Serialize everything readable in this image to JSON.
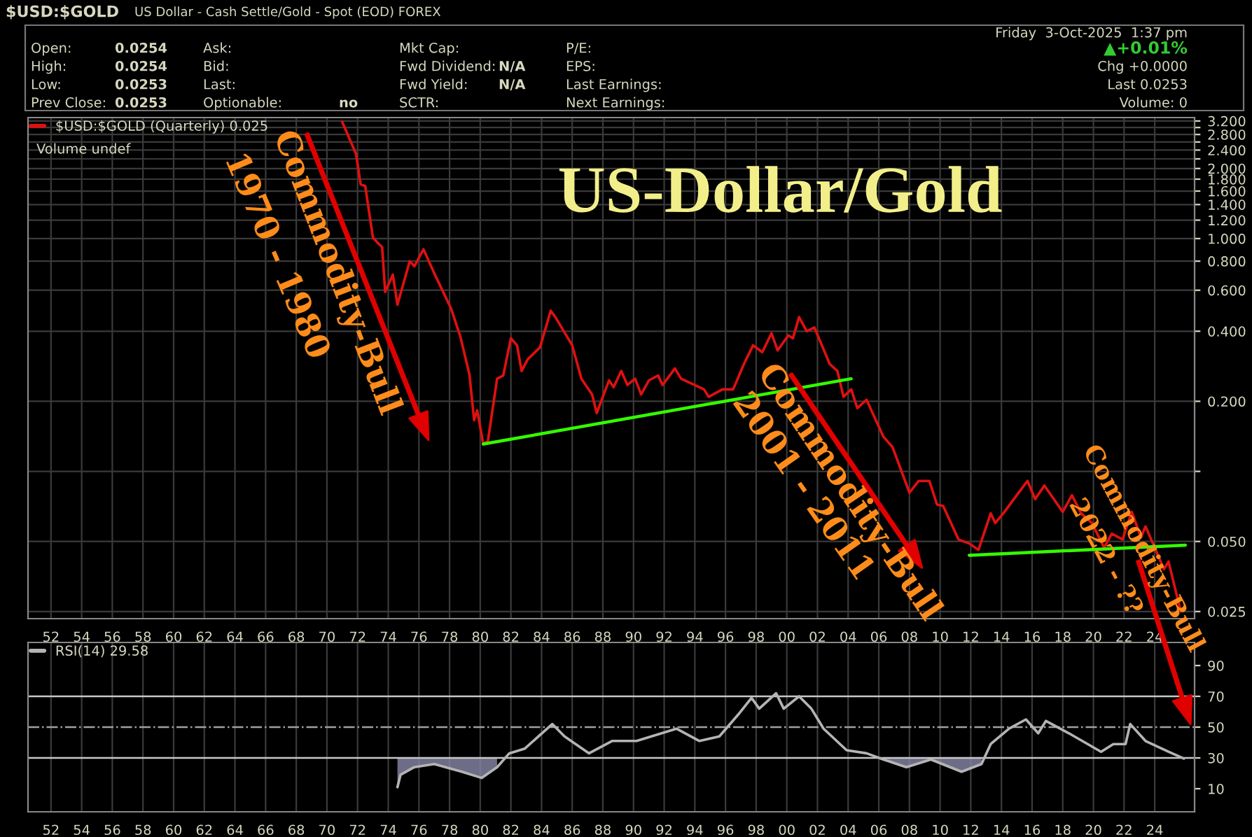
{
  "chart_data": [
    {
      "type": "other",
      "title": "$USD:$GOLD",
      "subtitle": "US Dollar - Cash Settle/Gold - Spot (EOD) FOREX",
      "annotations": [
        "Open:",
        "0.0254",
        "High:",
        "0.0254",
        "Low:",
        "0.0253",
        "Prev Close:",
        "0.0253",
        "Ask:",
        "Bid:",
        "Last:",
        "Optionable:",
        "no",
        "Mkt Cap:",
        "Fwd Dividend:",
        "N/A",
        "Fwd Yield:",
        "N/A",
        "SCTR:",
        "P/E:",
        "EPS:",
        "Last Earnings:",
        "Next Earnings:",
        "Friday  3-Oct-2025  1:37 pm",
        "▲+0.01%",
        "Chg +0.0000",
        "Last 0.0253",
        "Volume: 0"
      ]
    },
    {
      "type": "line",
      "title": "US-Dollar/Gold",
      "log": "y",
      "grid": true,
      "legend": "top left",
      "xlim": [
        1950.5,
        2026.6
      ],
      "ylim": [
        0.0233,
        3.31
      ],
      "xticks": [
        {
          "value": 1952,
          "label": "52"
        },
        {
          "value": 1954,
          "label": "54"
        },
        {
          "value": 1956,
          "label": "56"
        },
        {
          "value": 1958,
          "label": "58"
        },
        {
          "value": 1960,
          "label": "60"
        },
        {
          "value": 1962,
          "label": "62"
        },
        {
          "value": 1964,
          "label": "64"
        },
        {
          "value": 1966,
          "label": "66"
        },
        {
          "value": 1968,
          "label": "68"
        },
        {
          "value": 1970,
          "label": "70"
        },
        {
          "value": 1972,
          "label": "72"
        },
        {
          "value": 1974,
          "label": "74"
        },
        {
          "value": 1976,
          "label": "76"
        },
        {
          "value": 1978,
          "label": "78"
        },
        {
          "value": 1980,
          "label": "80"
        },
        {
          "value": 1982,
          "label": "82"
        },
        {
          "value": 1984,
          "label": "84"
        },
        {
          "value": 1986,
          "label": "86"
        },
        {
          "value": 1988,
          "label": "88"
        },
        {
          "value": 1990,
          "label": "90"
        },
        {
          "value": 1992,
          "label": "92"
        },
        {
          "value": 1994,
          "label": "94"
        },
        {
          "value": 1996,
          "label": "96"
        },
        {
          "value": 1998,
          "label": "98"
        },
        {
          "value": 2000,
          "label": "00"
        },
        {
          "value": 2002,
          "label": "02"
        },
        {
          "value": 2004,
          "label": "04"
        },
        {
          "value": 2006,
          "label": "06"
        },
        {
          "value": 2008,
          "label": "08"
        },
        {
          "value": 2010,
          "label": "10"
        },
        {
          "value": 2012,
          "label": "12"
        },
        {
          "value": 2014,
          "label": "14"
        },
        {
          "value": 2016,
          "label": "16"
        },
        {
          "value": 2018,
          "label": "18"
        },
        {
          "value": 2020,
          "label": "20"
        },
        {
          "value": 2022,
          "label": "22"
        },
        {
          "value": 2024,
          "label": "24"
        }
      ],
      "yticks": [
        {
          "value": 0.025,
          "label": "0.025"
        },
        {
          "value": 0.05,
          "label": "0.050"
        },
        {
          "value": 0.1,
          "label": null
        },
        {
          "value": 0.2,
          "label": "0.200"
        },
        {
          "value": 0.4,
          "label": "0.400"
        },
        {
          "value": 0.6,
          "label": "0.600"
        },
        {
          "value": 0.8,
          "label": "0.800"
        },
        {
          "value": 1.0,
          "label": "1.000"
        },
        {
          "value": 1.2,
          "label": "1.200"
        },
        {
          "value": 1.4,
          "label": "1.400"
        },
        {
          "value": 1.6,
          "label": "1.600"
        },
        {
          "value": 1.8,
          "label": "1.800"
        },
        {
          "value": 2.0,
          "label": "2.000"
        },
        {
          "value": 2.2,
          "label": null
        },
        {
          "value": 2.4,
          "label": "2.400"
        },
        {
          "value": 2.6,
          "label": null
        },
        {
          "value": 2.8,
          "label": "2.800"
        },
        {
          "value": 3.0,
          "label": null
        },
        {
          "value": 3.2,
          "label": "3.200"
        }
      ],
      "annotations": [
        "Volume undef",
        "Commodity-Bull",
        "1970 - 1980",
        "Commodity-Bull",
        "2001 - 2011",
        "Commodity-Bull",
        "2022 - ??"
      ],
      "series": [
        {
          "name": "$USD:$GOLD (Quarterly) 0.025",
          "color": "#e01010",
          "x": [
            1971.0,
            1971.9,
            1972.2,
            1972.5,
            1973.0,
            1973.3,
            1973.6,
            1973.8,
            1974.3,
            1974.6,
            1975.4,
            1975.7,
            1976.3,
            1977.0,
            1978.1,
            1978.7,
            1979.3,
            1979.6,
            1979.8,
            1980.2,
            1980.5,
            1981.1,
            1981.5,
            1982.0,
            1982.4,
            1982.7,
            1983.1,
            1983.9,
            1984.6,
            1984.9,
            1986.0,
            1986.6,
            1987.3,
            1987.6,
            1988.4,
            1988.7,
            1989.2,
            1989.6,
            1990.1,
            1990.5,
            1991.0,
            1991.6,
            1991.9,
            1992.7,
            1993.1,
            1994.6,
            1994.9,
            1995.8,
            1996.5,
            1997.2,
            1997.8,
            1998.4,
            1999.0,
            1999.4,
            2000.1,
            2000.4,
            2000.8,
            2001.3,
            2001.8,
            2002.8,
            2003.3,
            2003.7,
            2004.2,
            2004.6,
            2005.2,
            2006.3,
            2006.9,
            2008.0,
            2008.6,
            2009.3,
            2009.8,
            2010.2,
            2011.2,
            2011.9,
            2012.5,
            2013.3,
            2013.6,
            2014.2,
            2015.0,
            2015.7,
            2016.2,
            2016.8,
            2018.0,
            2018.6,
            2019.2,
            2019.9,
            2020.7,
            2021.2,
            2021.9,
            2022.5,
            2023.1,
            2023.4,
            2024.0,
            2024.6,
            2024.9,
            2025.7
          ],
          "values": [
            3.17,
            2.31,
            1.71,
            1.68,
            1.01,
            0.96,
            0.92,
            0.59,
            0.7,
            0.52,
            0.8,
            0.76,
            0.9,
            0.71,
            0.5,
            0.38,
            0.26,
            0.166,
            0.183,
            0.131,
            0.135,
            0.25,
            0.258,
            0.373,
            0.348,
            0.27,
            0.303,
            0.341,
            0.49,
            0.46,
            0.348,
            0.25,
            0.214,
            0.178,
            0.246,
            0.23,
            0.27,
            0.235,
            0.25,
            0.214,
            0.246,
            0.258,
            0.235,
            0.277,
            0.25,
            0.225,
            0.209,
            0.225,
            0.225,
            0.289,
            0.348,
            0.325,
            0.392,
            0.331,
            0.384,
            0.373,
            0.46,
            0.4,
            0.415,
            0.289,
            0.27,
            0.209,
            0.225,
            0.187,
            0.203,
            0.141,
            0.127,
            0.081,
            0.091,
            0.091,
            0.072,
            0.071,
            0.051,
            0.049,
            0.046,
            0.066,
            0.06,
            0.067,
            0.079,
            0.091,
            0.076,
            0.087,
            0.067,
            0.079,
            0.066,
            0.06,
            0.047,
            0.054,
            0.051,
            0.067,
            0.052,
            0.058,
            0.047,
            0.038,
            0.041,
            0.025
          ]
        },
        {
          "color": "#33ff00",
          "x": [
            1980.2,
            2004.2
          ],
          "values": [
            0.131,
            0.25
          ]
        },
        {
          "color": "#33ff00",
          "x": [
            2011.9,
            2026.0
          ],
          "values": [
            0.0436,
            0.0482
          ]
        }
      ]
    },
    {
      "type": "line",
      "grid": "x",
      "legend": "top left",
      "xlim": [
        1950.5,
        2026.6
      ],
      "ylim": [
        -5,
        105
      ],
      "xticks": [
        {
          "value": 1952,
          "label": "52"
        },
        {
          "value": 1954,
          "label": "54"
        },
        {
          "value": 1956,
          "label": "56"
        },
        {
          "value": 1958,
          "label": "58"
        },
        {
          "value": 1960,
          "label": "60"
        },
        {
          "value": 1962,
          "label": "62"
        },
        {
          "value": 1964,
          "label": "64"
        },
        {
          "value": 1966,
          "label": "66"
        },
        {
          "value": 1968,
          "label": "68"
        },
        {
          "value": 1970,
          "label": "70"
        },
        {
          "value": 1972,
          "label": "72"
        },
        {
          "value": 1974,
          "label": "74"
        },
        {
          "value": 1976,
          "label": "76"
        },
        {
          "value": 1978,
          "label": "78"
        },
        {
          "value": 1980,
          "label": "80"
        },
        {
          "value": 1982,
          "label": "82"
        },
        {
          "value": 1984,
          "label": "84"
        },
        {
          "value": 1986,
          "label": "86"
        },
        {
          "value": 1988,
          "label": "88"
        },
        {
          "value": 1990,
          "label": "90"
        },
        {
          "value": 1992,
          "label": "92"
        },
        {
          "value": 1994,
          "label": "94"
        },
        {
          "value": 1996,
          "label": "96"
        },
        {
          "value": 1998,
          "label": "98"
        },
        {
          "value": 2000,
          "label": "00"
        },
        {
          "value": 2002,
          "label": "02"
        },
        {
          "value": 2004,
          "label": "04"
        },
        {
          "value": 2006,
          "label": "06"
        },
        {
          "value": 2008,
          "label": "08"
        },
        {
          "value": 2010,
          "label": "10"
        },
        {
          "value": 2012,
          "label": "12"
        },
        {
          "value": 2014,
          "label": "14"
        },
        {
          "value": 2016,
          "label": "16"
        },
        {
          "value": 2018,
          "label": "18"
        },
        {
          "value": 2020,
          "label": "20"
        },
        {
          "value": 2022,
          "label": "22"
        },
        {
          "value": 2024,
          "label": "24"
        }
      ],
      "yticks": [
        10,
        30,
        50,
        70,
        90
      ],
      "ref_lines": [
        {
          "axis": "y",
          "value": 70,
          "color": "#c8c8c8",
          "line_style": "solid"
        },
        {
          "axis": "y",
          "value": 50,
          "color": "#a0a0a0",
          "line_style": "dashdot"
        },
        {
          "axis": "y",
          "value": 30,
          "color": "#c8c8c8",
          "line_style": "solid"
        }
      ],
      "series": [
        {
          "name": "RSI(14) 29.58",
          "color": "#b4b4b4",
          "x": [
            1974.6,
            1974.8,
            1975.7,
            1977.0,
            1978.8,
            1980.1,
            1981.1,
            1981.9,
            1982.9,
            1984.7,
            1985.5,
            1987.1,
            1988.6,
            1990.2,
            1992.8,
            1994.3,
            1995.6,
            1996.9,
            1997.7,
            1998.2,
            1999.3,
            1999.8,
            2000.8,
            2001.6,
            2002.4,
            2003.9,
            2005.2,
            2006.3,
            2007.8,
            2009.4,
            2011.4,
            2012.7,
            2013.3,
            2014.5,
            2015.6,
            2016.4,
            2016.9,
            2018.4,
            2020.5,
            2021.3,
            2022.1,
            2022.4,
            2023.4,
            2024.9,
            2025.9
          ],
          "values": [
            11,
            19,
            24,
            26,
            21,
            17,
            24,
            33,
            36,
            52,
            44,
            33,
            41,
            41,
            49,
            41,
            44,
            59,
            69,
            62,
            72,
            62,
            70,
            62,
            49,
            35,
            33,
            29,
            24,
            29,
            21,
            26,
            39,
            49,
            55,
            46,
            54,
            46,
            34,
            39,
            39,
            52,
            41,
            34,
            29.58
          ],
          "lower": [
            11,
            19,
            24,
            26,
            21,
            17,
            24,
            null,
            null,
            null,
            null,
            null,
            null,
            null,
            null,
            null,
            null,
            null,
            null,
            null,
            null,
            null,
            null,
            null,
            null,
            null,
            null,
            29,
            24,
            29,
            21,
            26,
            null,
            null,
            null,
            null,
            null,
            null,
            null,
            null,
            null,
            null,
            null,
            null,
            null
          ],
          "upper": [
            30,
            30,
            30,
            30,
            30,
            30,
            30,
            null,
            null,
            null,
            null,
            null,
            null,
            null,
            null,
            null,
            null,
            null,
            null,
            null,
            null,
            null,
            null,
            null,
            null,
            null,
            null,
            30,
            30,
            30,
            30,
            30,
            null,
            null,
            null,
            null,
            null,
            null,
            null,
            null,
            null,
            null,
            null,
            null,
            null
          ]
        }
      ]
    }
  ]
}
